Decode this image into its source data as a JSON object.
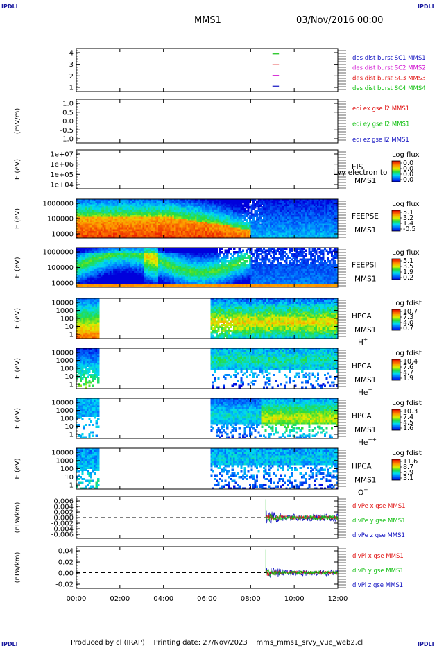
{
  "corners": {
    "tl": "IPDLI",
    "tr": "IPDLI",
    "bl": "IPDLI",
    "br": "IPDLI"
  },
  "header": {
    "spacecraft": "MMS1",
    "date": "03/Nov/2016 00:00"
  },
  "footer": {
    "credit": "Produced by cl (IRAP)",
    "printing": "Printing date: 27/Nov/2023",
    "file": "mms_mms1_srvy_vue_web2.cl"
  },
  "colors": {
    "blue": "#1010c0",
    "red": "#e01010",
    "green": "#10c010",
    "magenta": "#d010d0",
    "black": "#000000"
  },
  "chart_data": {
    "type": "multi-panel time series and spectrograms",
    "x_ticks": [
      "00:00",
      "02:00",
      "04:00",
      "06:00",
      "08:00",
      "10:00",
      "12:00"
    ],
    "x_range_hours": [
      0,
      12
    ],
    "panels": [
      {
        "id": "burst",
        "type": "line",
        "ylabel": "",
        "yticks": [
          "4",
          "3",
          "2",
          "1"
        ],
        "ylim": [
          0.5,
          4.5
        ],
        "segments": [
          {
            "value": 4,
            "start": 9.0,
            "end": 9.3,
            "color": "#10c010"
          },
          {
            "value": 3,
            "start": 9.0,
            "end": 9.3,
            "color": "#e01010"
          },
          {
            "value": 2,
            "start": 9.0,
            "end": 9.3,
            "color": "#d010d0"
          },
          {
            "value": 1,
            "start": 9.0,
            "end": 9.3,
            "color": "#1010c0"
          }
        ],
        "legend": [
          {
            "text": "des dist burst SC1 MMS1",
            "color": "#1010c0"
          },
          {
            "text": "des dist burst SC2 MMS2",
            "color": "#d010d0"
          },
          {
            "text": "des dist burst SC3 MMS3",
            "color": "#e01010"
          },
          {
            "text": "des dist burst SC4 MMS4",
            "color": "#10c010"
          }
        ]
      },
      {
        "id": "edi",
        "type": "line",
        "ylabel": "(mV/m)",
        "yticks": [
          "1.0",
          "0.5",
          "0.0",
          "-0.5",
          "-1.0"
        ],
        "ylim": [
          -1.2,
          1.2
        ],
        "zero_line": true,
        "legend": [
          {
            "text": "edi ex gse l2 MMS1",
            "color": "#e01010"
          },
          {
            "text": "edi ey gse l2 MMS1",
            "color": "#10c010"
          },
          {
            "text": "edi ez gse l2 MMS1",
            "color": "#1010c0"
          }
        ]
      },
      {
        "id": "eis",
        "type": "spectrogram",
        "ylabel": "E (eV)",
        "yticks": [
          "1e+07",
          "1e+06",
          "1e+05",
          "1e+04"
        ],
        "label_lines": [
          "EIS",
          "MMS1"
        ],
        "overlay_text": "Lvy electron to",
        "colorbar": {
          "title": "Log flux",
          "ticks": [
            "0.0",
            "0.0",
            "0.0",
            "0.0"
          ]
        },
        "data_present": false
      },
      {
        "id": "feepse",
        "type": "spectrogram",
        "ylabel": "E (eV)",
        "yticks": [
          "1000000",
          "100000",
          "10000"
        ],
        "label_lines": [
          "FEEPSE",
          "MMS1"
        ],
        "colorbar": {
          "title": "Log flux",
          "ticks": [
            "5.1",
            "3.2",
            "1.4",
            "-0.5"
          ]
        },
        "data_present": true
      },
      {
        "id": "feepsi",
        "type": "spectrogram",
        "ylabel": "E (eV)",
        "yticks": [
          "1000000",
          "100000",
          "10000"
        ],
        "label_lines": [
          "FEEPSI",
          "MMS1"
        ],
        "colorbar": {
          "title": "Log flux",
          "ticks": [
            "5.1",
            "3.5",
            "1.9",
            "0.2"
          ]
        },
        "data_present": true
      },
      {
        "id": "hpca_h",
        "type": "spectrogram",
        "ylabel": "E (eV)",
        "yticks": [
          "10000",
          "1000",
          "100",
          "10",
          "1"
        ],
        "label_lines": [
          "HPCA",
          "MMS1"
        ],
        "species": "H",
        "species_sup": "+",
        "colorbar": {
          "title": "Log fdist",
          "ticks": [
            "10.7",
            "7.3",
            "4.0",
            "0.7"
          ]
        },
        "data_present": true
      },
      {
        "id": "hpca_he",
        "type": "spectrogram",
        "ylabel": "E (eV)",
        "yticks": [
          "10000",
          "1000",
          "100",
          "10",
          "1"
        ],
        "label_lines": [
          "HPCA",
          "MMS1"
        ],
        "species": "He",
        "species_sup": "+",
        "colorbar": {
          "title": "Log fdist",
          "ticks": [
            "10.4",
            "7.6",
            "4.7",
            "1.9"
          ]
        },
        "data_present": true
      },
      {
        "id": "hpca_hepp",
        "type": "spectrogram",
        "ylabel": "E (eV)",
        "yticks": [
          "10000",
          "1000",
          "100",
          "10",
          "1"
        ],
        "label_lines": [
          "HPCA",
          "MMS1"
        ],
        "species": "He",
        "species_sup": "++",
        "colorbar": {
          "title": "Log fdist",
          "ticks": [
            "10.3",
            "7.4",
            "4.5",
            "1.6"
          ]
        },
        "data_present": true
      },
      {
        "id": "hpca_o",
        "type": "spectrogram",
        "ylabel": "E (eV)",
        "yticks": [
          "10000",
          "1000",
          "100",
          "10",
          "1"
        ],
        "label_lines": [
          "HPCA",
          "MMS1"
        ],
        "species": "O",
        "species_sup": "+",
        "colorbar": {
          "title": "Log fdist",
          "ticks": [
            "11.6",
            "8.7",
            "5.9",
            "3.1"
          ]
        },
        "data_present": true
      },
      {
        "id": "divpe",
        "type": "line",
        "ylabel": "(nPa/km)",
        "yticks": [
          "0.006",
          "0.004",
          "0.002",
          "0.000",
          "-0.002",
          "-0.004",
          "-0.006"
        ],
        "ylim": [
          -0.007,
          0.007
        ],
        "zero_line": true,
        "legend": [
          {
            "text": "divPe x gse MMS1",
            "color": "#e01010"
          },
          {
            "text": "divPe y gse MMS1",
            "color": "#10c010"
          },
          {
            "text": "divPe z gse MMS1",
            "color": "#1010c0"
          }
        ]
      },
      {
        "id": "divpi",
        "type": "line",
        "ylabel": "(nPa/km)",
        "yticks": [
          "0.04",
          "0.02",
          "0.00",
          "-0.02"
        ],
        "ylim": [
          -0.03,
          0.05
        ],
        "zero_line": true,
        "legend": [
          {
            "text": "divPi x gse MMS1",
            "color": "#e01010"
          },
          {
            "text": "divPi y gse MMS1",
            "color": "#10c010"
          },
          {
            "text": "divPi z gse MMS1",
            "color": "#1010c0"
          }
        ]
      }
    ]
  }
}
